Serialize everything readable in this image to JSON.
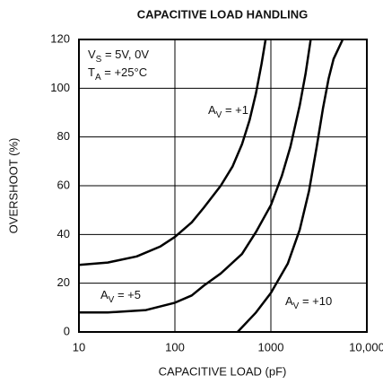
{
  "chart_data": {
    "type": "line",
    "title": "CAPACITIVE LOAD HANDLING",
    "xlabel": "CAPACITIVE LOAD (pF)",
    "ylabel": "OVERSHOOT (%)",
    "xscale": "log",
    "xlim": [
      10,
      10000
    ],
    "xticks": [
      10,
      100,
      1000,
      {
        "value": 10000,
        "label": "10,000"
      }
    ],
    "ylim": [
      0,
      120
    ],
    "yticks": [
      0,
      20,
      40,
      60,
      80,
      100,
      120
    ],
    "grid": true,
    "annotations": [
      {
        "parts": [
          "V",
          "S",
          " = 5V, 0V"
        ]
      },
      {
        "parts": [
          "T",
          "A",
          " = +25°C"
        ]
      },
      {
        "parts": [
          "A",
          "V",
          " = +1"
        ]
      },
      {
        "parts": [
          "A",
          "V",
          " = +5"
        ]
      },
      {
        "parts": [
          "A",
          "V",
          " = +10"
        ]
      }
    ],
    "series": [
      {
        "color": "#000000",
        "x": [
          10,
          20,
          40,
          70,
          100,
          150,
          200,
          300,
          400,
          500,
          600,
          700,
          800,
          880
        ],
        "values": [
          27.5,
          28.5,
          31,
          35,
          39,
          45,
          51,
          60,
          68,
          77,
          87,
          98,
          110,
          120
        ]
      },
      {
        "color": "#000000",
        "x": [
          10,
          20,
          50,
          100,
          150,
          200,
          300,
          500,
          700,
          1000,
          1300,
          1600,
          2000,
          2300,
          2600
        ],
        "values": [
          8,
          8,
          9,
          12,
          15,
          19,
          24,
          32,
          41,
          52,
          64,
          76,
          93,
          106,
          120
        ]
      },
      {
        "color": "#000000",
        "x": [
          450,
          700,
          1000,
          1500,
          2000,
          2500,
          3000,
          3500,
          4000,
          4500,
          5600
        ],
        "values": [
          0,
          8,
          16,
          28,
          42,
          58,
          76,
          92,
          104,
          112,
          120
        ]
      }
    ]
  }
}
